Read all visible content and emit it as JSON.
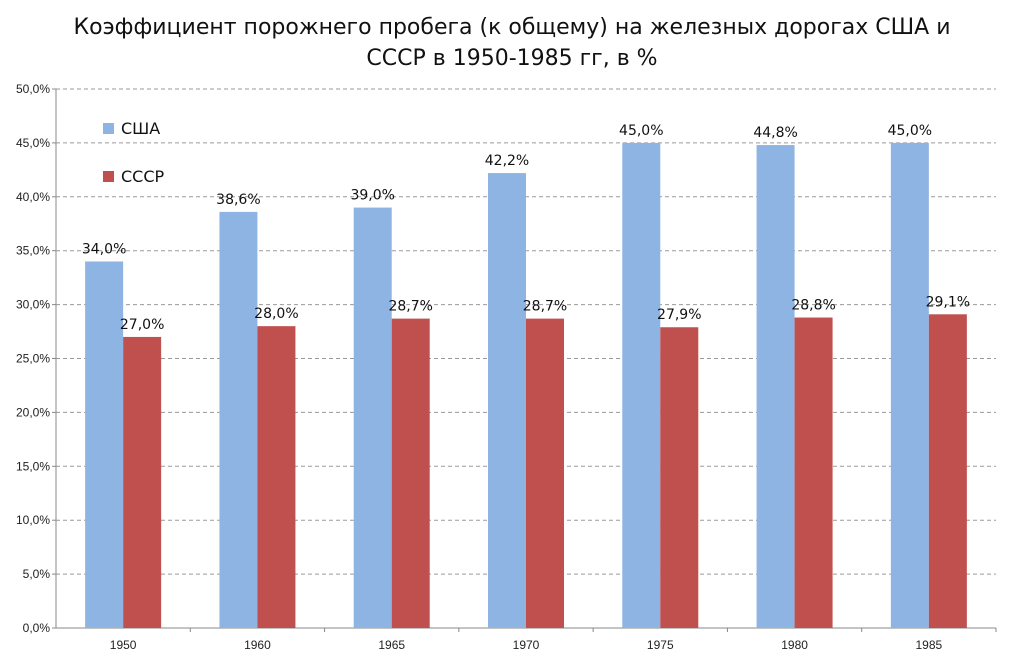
{
  "chart_data": {
    "type": "bar",
    "title_lines": [
      "Коэффициент порожнего пробега (к общему) на железных дорогах США и",
      "СССР в 1950-1985 гг, в %"
    ],
    "categories": [
      "1950",
      "1960",
      "1965",
      "1970",
      "1975",
      "1980",
      "1985"
    ],
    "series": [
      {
        "name": "США",
        "color": "#8EB4E3",
        "values": [
          34.0,
          38.6,
          39.0,
          42.2,
          45.0,
          44.8,
          45.0
        ],
        "labels": [
          "34,0%",
          "38,6%",
          "39,0%",
          "42,2%",
          "45,0%",
          "44,8%",
          "45,0%"
        ]
      },
      {
        "name": "СССР",
        "color": "#C0504D",
        "values": [
          27.0,
          28.0,
          28.7,
          28.7,
          27.9,
          28.8,
          29.1
        ],
        "labels": [
          "27,0%",
          "28,0%",
          "28,7%",
          "28,7%",
          "27,9%",
          "28,8%",
          "29,1%"
        ]
      }
    ],
    "ylim": [
      0,
      50
    ],
    "yticks": [
      0,
      5,
      10,
      15,
      20,
      25,
      30,
      35,
      40,
      45,
      50
    ],
    "ytick_labels": [
      "0,0%",
      "5,0%",
      "10,0%",
      "15,0%",
      "20,0%",
      "25,0%",
      "30,0%",
      "35,0%",
      "40,0%",
      "45,0%",
      "50,0%"
    ],
    "grid": true,
    "legend_position": "top-left",
    "xlabel": "",
    "ylabel": ""
  }
}
